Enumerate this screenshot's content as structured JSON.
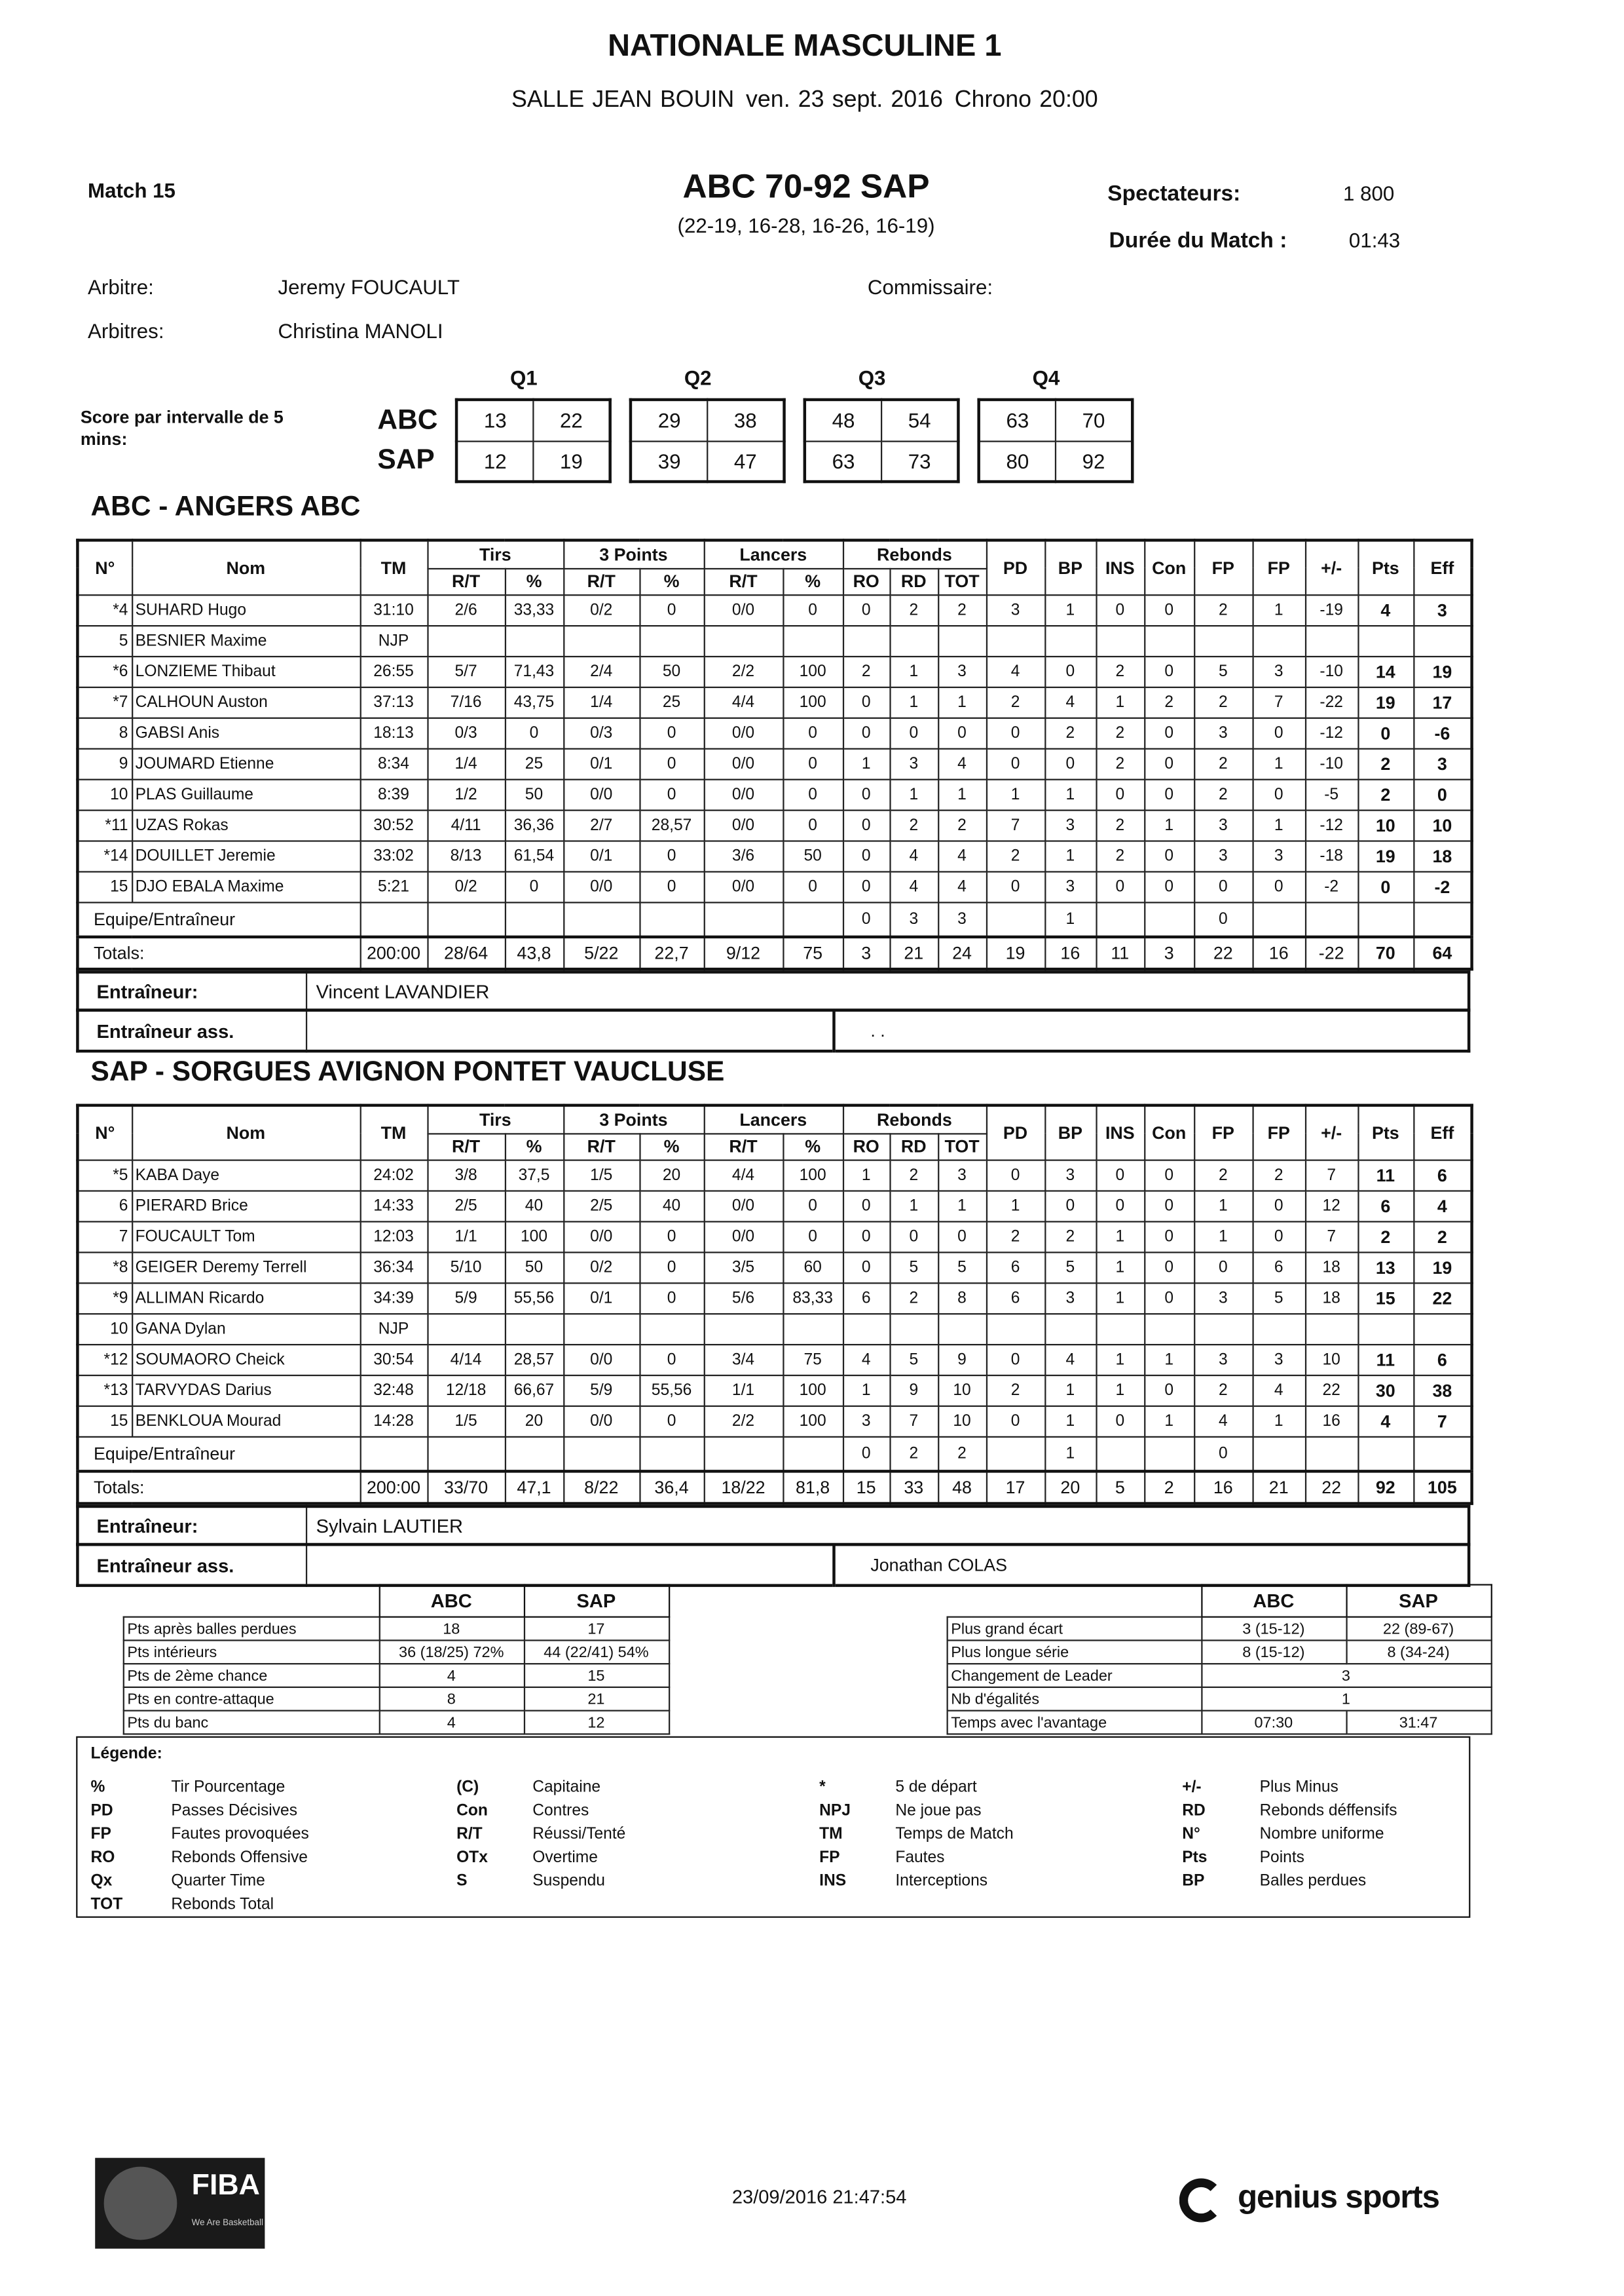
{
  "header": {
    "title": "NATIONALE MASCULINE 1",
    "venue": "SALLE JEAN BOUIN",
    "date": "ven. 23 sept. 2016",
    "chrono": "Chrono 20:00"
  },
  "match": {
    "label": "Match 15",
    "score": "ABC 70-92 SAP",
    "quarters": "(22-19, 16-28, 16-26, 16-19)",
    "spectators_label": "Spectateurs:",
    "spectators": "1 800",
    "duration_label": "Durée du Match :",
    "duration": "01:43"
  },
  "officials": {
    "referee_label": "Arbitre:",
    "referee": "Jeremy FOUCAULT",
    "referees_label": "Arbitres:",
    "referees": "Christina MANOLI",
    "commissioner_label": "Commissaire:"
  },
  "intervals": {
    "label": "Score par intervalle de 5 mins:",
    "quarters": [
      "Q1",
      "Q2",
      "Q3",
      "Q4"
    ],
    "teams": [
      "ABC",
      "SAP"
    ],
    "scores": [
      [
        [
          "13",
          "22"
        ],
        [
          "29",
          "38"
        ],
        [
          "48",
          "54"
        ],
        [
          "63",
          "70"
        ]
      ],
      [
        [
          "12",
          "19"
        ],
        [
          "39",
          "47"
        ],
        [
          "63",
          "73"
        ],
        [
          "80",
          "92"
        ]
      ]
    ]
  },
  "stat_header": {
    "left": [
      "N°",
      "Nom",
      "TM"
    ],
    "groups": [
      {
        "name": "Tirs",
        "cols": [
          "R/T",
          "%"
        ]
      },
      {
        "name": "3 Points",
        "cols": [
          "R/T",
          "%"
        ]
      },
      {
        "name": "Lancers",
        "cols": [
          "R/T",
          "%"
        ]
      },
      {
        "name": "Rebonds",
        "cols": [
          "RO",
          "RD",
          "TOT"
        ]
      }
    ],
    "right": [
      "PD",
      "BP",
      "INS",
      "Con",
      "FP",
      "FP",
      "+/-",
      "Pts",
      "Eff"
    ]
  },
  "teams": [
    {
      "name": "ABC - ANGERS ABC",
      "players": [
        {
          "num": "*4",
          "name": "SUHARD Hugo",
          "stats": [
            "31:10",
            "2/6",
            "33,33",
            "0/2",
            "0",
            "0/0",
            "0",
            "0",
            "2",
            "2",
            "3",
            "1",
            "0",
            "0",
            "2",
            "1",
            "-19",
            "4",
            "3"
          ]
        },
        {
          "num": "5",
          "name": "BESNIER Maxime",
          "stats": [
            "NJP"
          ]
        },
        {
          "num": "*6",
          "name": "LONZIEME Thibaut",
          "stats": [
            "26:55",
            "5/7",
            "71,43",
            "2/4",
            "50",
            "2/2",
            "100",
            "2",
            "1",
            "3",
            "4",
            "0",
            "2",
            "0",
            "5",
            "3",
            "-10",
            "14",
            "19"
          ]
        },
        {
          "num": "*7",
          "name": "CALHOUN Auston",
          "stats": [
            "37:13",
            "7/16",
            "43,75",
            "1/4",
            "25",
            "4/4",
            "100",
            "0",
            "1",
            "1",
            "2",
            "4",
            "1",
            "2",
            "2",
            "7",
            "-22",
            "19",
            "17"
          ]
        },
        {
          "num": "8",
          "name": "GABSI Anis",
          "stats": [
            "18:13",
            "0/3",
            "0",
            "0/3",
            "0",
            "0/0",
            "0",
            "0",
            "0",
            "0",
            "0",
            "2",
            "2",
            "0",
            "3",
            "0",
            "-12",
            "0",
            "-6"
          ]
        },
        {
          "num": "9",
          "name": "JOUMARD Etienne",
          "stats": [
            "8:34",
            "1/4",
            "25",
            "0/1",
            "0",
            "0/0",
            "0",
            "1",
            "3",
            "4",
            "0",
            "0",
            "2",
            "0",
            "2",
            "1",
            "-10",
            "2",
            "3"
          ]
        },
        {
          "num": "10",
          "name": "PLAS Guillaume",
          "stats": [
            "8:39",
            "1/2",
            "50",
            "0/0",
            "0",
            "0/0",
            "0",
            "0",
            "1",
            "1",
            "1",
            "1",
            "0",
            "0",
            "2",
            "0",
            "-5",
            "2",
            "0"
          ]
        },
        {
          "num": "*11",
          "name": "UZAS Rokas",
          "stats": [
            "30:52",
            "4/11",
            "36,36",
            "2/7",
            "28,57",
            "0/0",
            "0",
            "0",
            "2",
            "2",
            "7",
            "3",
            "2",
            "1",
            "3",
            "1",
            "-12",
            "10",
            "10"
          ]
        },
        {
          "num": "*14",
          "name": "DOUILLET Jeremie",
          "stats": [
            "33:02",
            "8/13",
            "61,54",
            "0/1",
            "0",
            "3/6",
            "50",
            "0",
            "4",
            "4",
            "2",
            "1",
            "2",
            "0",
            "3",
            "3",
            "-18",
            "19",
            "18"
          ]
        },
        {
          "num": "15",
          "name": "DJO EBALA Maxime",
          "stats": [
            "5:21",
            "0/2",
            "0",
            "0/0",
            "0",
            "0/0",
            "0",
            "0",
            "4",
            "4",
            "0",
            "3",
            "0",
            "0",
            "0",
            "0",
            "-2",
            "0",
            "-2"
          ]
        }
      ],
      "team_row": {
        "label": "Equipe/Entraîneur",
        "rebounds": [
          "0",
          "3",
          "3"
        ],
        "bp": "1",
        "fp": "0"
      },
      "totals": {
        "label": "Totals:",
        "values": [
          "200:00",
          "28/64",
          "43,8",
          "5/22",
          "22,7",
          "9/12",
          "75",
          "3",
          "21",
          "24",
          "19",
          "16",
          "11",
          "3",
          "22",
          "16",
          "-22",
          "70",
          "64"
        ]
      },
      "coach_label": "Entraîneur:",
      "coach": "Vincent LAVANDIER",
      "assistant_label": "Entraîneur ass.",
      "assistant": ". ."
    },
    {
      "name": "SAP - SORGUES AVIGNON PONTET VAUCLUSE",
      "players": [
        {
          "num": "*5",
          "name": "KABA Daye",
          "stats": [
            "24:02",
            "3/8",
            "37,5",
            "1/5",
            "20",
            "4/4",
            "100",
            "1",
            "2",
            "3",
            "0",
            "3",
            "0",
            "0",
            "2",
            "2",
            "7",
            "11",
            "6"
          ]
        },
        {
          "num": "6",
          "name": "PIERARD Brice",
          "stats": [
            "14:33",
            "2/5",
            "40",
            "2/5",
            "40",
            "0/0",
            "0",
            "0",
            "1",
            "1",
            "1",
            "0",
            "0",
            "0",
            "1",
            "0",
            "12",
            "6",
            "4"
          ]
        },
        {
          "num": "7",
          "name": "FOUCAULT Tom",
          "stats": [
            "12:03",
            "1/1",
            "100",
            "0/0",
            "0",
            "0/0",
            "0",
            "0",
            "0",
            "0",
            "2",
            "2",
            "1",
            "0",
            "1",
            "0",
            "7",
            "2",
            "2"
          ]
        },
        {
          "num": "*8",
          "name": "GEIGER Deremy Terrell",
          "stats": [
            "36:34",
            "5/10",
            "50",
            "0/2",
            "0",
            "3/5",
            "60",
            "0",
            "5",
            "5",
            "6",
            "5",
            "1",
            "0",
            "0",
            "6",
            "18",
            "13",
            "19"
          ]
        },
        {
          "num": "*9",
          "name": "ALLIMAN Ricardo",
          "stats": [
            "34:39",
            "5/9",
            "55,56",
            "0/1",
            "0",
            "5/6",
            "83,33",
            "6",
            "2",
            "8",
            "6",
            "3",
            "1",
            "0",
            "3",
            "5",
            "18",
            "15",
            "22"
          ]
        },
        {
          "num": "10",
          "name": "GANA Dylan",
          "stats": [
            "NJP"
          ]
        },
        {
          "num": "*12",
          "name": "SOUMAORO Cheick",
          "stats": [
            "30:54",
            "4/14",
            "28,57",
            "0/0",
            "0",
            "3/4",
            "75",
            "4",
            "5",
            "9",
            "0",
            "4",
            "1",
            "1",
            "3",
            "3",
            "10",
            "11",
            "6"
          ]
        },
        {
          "num": "*13",
          "name": "TARVYDAS Darius",
          "stats": [
            "32:48",
            "12/18",
            "66,67",
            "5/9",
            "55,56",
            "1/1",
            "100",
            "1",
            "9",
            "10",
            "2",
            "1",
            "1",
            "0",
            "2",
            "4",
            "22",
            "30",
            "38"
          ]
        },
        {
          "num": "15",
          "name": "BENKLOUA Mourad",
          "stats": [
            "14:28",
            "1/5",
            "20",
            "0/0",
            "0",
            "2/2",
            "100",
            "3",
            "7",
            "10",
            "0",
            "1",
            "0",
            "1",
            "4",
            "1",
            "16",
            "4",
            "7"
          ]
        }
      ],
      "team_row": {
        "label": "Equipe/Entraîneur",
        "rebounds": [
          "0",
          "2",
          "2"
        ],
        "bp": "1",
        "fp": "0"
      },
      "totals": {
        "label": "Totals:",
        "values": [
          "200:00",
          "33/70",
          "47,1",
          "8/22",
          "36,4",
          "18/22",
          "81,8",
          "15",
          "33",
          "48",
          "17",
          "20",
          "5",
          "2",
          "16",
          "21",
          "22",
          "92",
          "105"
        ]
      },
      "coach_label": "Entraîneur:",
      "coach": "Sylvain LAUTIER",
      "assistant_label": "Entraîneur ass.",
      "assistant": "Jonathan COLAS"
    }
  ],
  "summary": {
    "left": {
      "header": [
        "ABC",
        "SAP"
      ],
      "rows": [
        {
          "label": "Pts après balles perdues",
          "values": [
            "18",
            "17"
          ]
        },
        {
          "label": "Pts intérieurs",
          "values": [
            "36 (18/25) 72%",
            "44 (22/41) 54%"
          ]
        },
        {
          "label": "Pts de 2ème chance",
          "values": [
            "4",
            "15"
          ]
        },
        {
          "label": "Pts en contre-attaque",
          "values": [
            "8",
            "21"
          ]
        },
        {
          "label": "Pts du banc",
          "values": [
            "4",
            "12"
          ]
        }
      ]
    },
    "right": {
      "header": [
        "ABC",
        "SAP"
      ],
      "rows": [
        {
          "label": "Plus grand écart",
          "values": [
            "3 (15-12)",
            "22 (89-67)"
          ]
        },
        {
          "label": "Plus longue série",
          "values": [
            "8 (15-12)",
            "8 (34-24)"
          ]
        },
        {
          "label": "Changement de Leader",
          "values": [
            "3"
          ]
        },
        {
          "label": "Nb d'égalités",
          "values": [
            "1"
          ]
        },
        {
          "label": "Temps avec l'avantage",
          "values": [
            "07:30",
            "31:47"
          ]
        }
      ]
    }
  },
  "legend": {
    "title": "Légende:",
    "columns": [
      [
        {
          "code": "%",
          "text": "Tir Pourcentage"
        },
        {
          "code": "PD",
          "text": "Passes Décisives"
        },
        {
          "code": "FP",
          "text": "Fautes provoquées"
        },
        {
          "code": "RO",
          "text": "Rebonds Offensive"
        },
        {
          "code": "Qx",
          "text": "Quarter Time"
        },
        {
          "code": "TOT",
          "text": "Rebonds Total"
        }
      ],
      [
        {
          "code": "(C)",
          "text": "Capitaine"
        },
        {
          "code": "Con",
          "text": "Contres"
        },
        {
          "code": "R/T",
          "text": "Réussi/Tenté"
        },
        {
          "code": "OTx",
          "text": "Overtime"
        },
        {
          "code": "S",
          "text": "Suspendu"
        }
      ],
      [
        {
          "code": "*",
          "text": "5 de départ"
        },
        {
          "code": "NPJ",
          "text": "Ne joue pas"
        },
        {
          "code": "TM",
          "text": "Temps de Match"
        },
        {
          "code": "FP",
          "text": "Fautes"
        },
        {
          "code": "INS",
          "text": "Interceptions"
        }
      ],
      [
        {
          "code": "+/-",
          "text": "Plus Minus"
        },
        {
          "code": "RD",
          "text": "Rebonds déffensifs"
        },
        {
          "code": "N°",
          "text": "Nombre uniforme"
        },
        {
          "code": "Pts",
          "text": "Points"
        },
        {
          "code": "BP",
          "text": "Balles perdues"
        }
      ]
    ]
  },
  "footer": {
    "fiba": "FIBA",
    "fiba_tagline": "We Are Basketball",
    "timestamp": "23/09/2016 21:47:54",
    "brand": "genius sports"
  }
}
